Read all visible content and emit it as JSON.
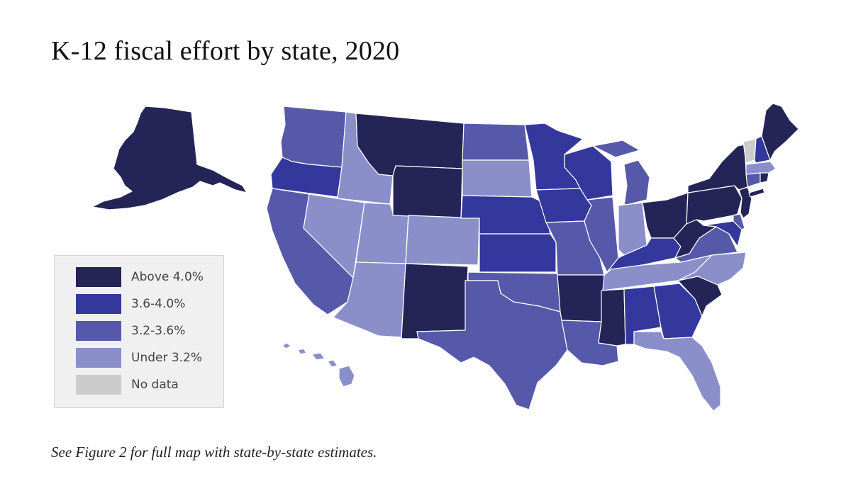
{
  "title": "K-12 fiscal effort by state, 2020",
  "footnote": "See Figure 2 for full map with state-by-state estimates.",
  "colors": {
    "above_4": "#242456",
    "c36_40": "#34389c",
    "c32_36": "#5659a9",
    "under_32": "#8b8fc9",
    "no_data": "#cccccc",
    "border": "#ffffff"
  },
  "legend": [
    {
      "label": "Above 4.0%",
      "category": "above_4"
    },
    {
      "label": "3.6-4.0%",
      "category": "c36_40"
    },
    {
      "label": "3.2-3.6%",
      "category": "c32_36"
    },
    {
      "label": "Under 3.2%",
      "category": "under_32"
    },
    {
      "label": "No data",
      "category": "no_data"
    }
  ],
  "states": {
    "AK": "above_4",
    "WA": "c32_36",
    "OR": "c36_40",
    "CA": "c32_36",
    "ID": "under_32",
    "NV": "under_32",
    "UT": "under_32",
    "AZ": "under_32",
    "MT": "above_4",
    "WY": "above_4",
    "CO": "under_32",
    "NM": "above_4",
    "ND": "c32_36",
    "SD": "under_32",
    "NE": "c36_40",
    "KS": "c36_40",
    "OK": "c32_36",
    "TX": "c32_36",
    "MN": "c36_40",
    "IA": "c36_40",
    "MO": "c32_36",
    "AR": "above_4",
    "LA": "c32_36",
    "WI": "c36_40",
    "IL": "c32_36",
    "MI": "c32_36",
    "IN": "under_32",
    "OH": "above_4",
    "KY": "c36_40",
    "TN": "under_32",
    "MS": "above_4",
    "AL": "c36_40",
    "GA": "c36_40",
    "FL": "under_32",
    "SC": "above_4",
    "NC": "under_32",
    "VA": "c32_36",
    "WV": "above_4",
    "MD": "c36_40",
    "DE": "c32_36",
    "PA": "above_4",
    "NY": "above_4",
    "NJ": "above_4",
    "CT": "c32_36",
    "RI": "above_4",
    "MA": "under_32",
    "VT": "no_data",
    "NH": "c36_40",
    "ME": "above_4",
    "HI": "under_32"
  }
}
